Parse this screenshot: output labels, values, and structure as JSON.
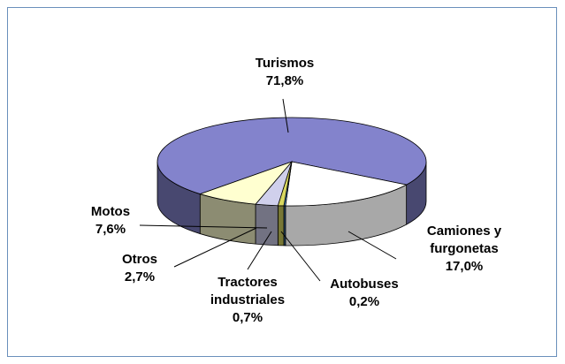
{
  "chart_data": {
    "type": "pie",
    "categories": [
      "Turismos",
      "Camiones y furgonetas",
      "Autobuses",
      "Tractores industriales",
      "Otros",
      "Motos"
    ],
    "values": [
      71.8,
      17.0,
      0.2,
      0.7,
      2.7,
      7.6
    ],
    "value_labels": [
      "71,8%",
      "17,0%",
      "0,2%",
      "0,7%",
      "2,7%",
      "7,6%"
    ],
    "colors": [
      "#8383cc",
      "#ffffff",
      "#4f8fd0",
      "#d8d860",
      "#d0d0ec",
      "#ffffd0"
    ]
  }
}
